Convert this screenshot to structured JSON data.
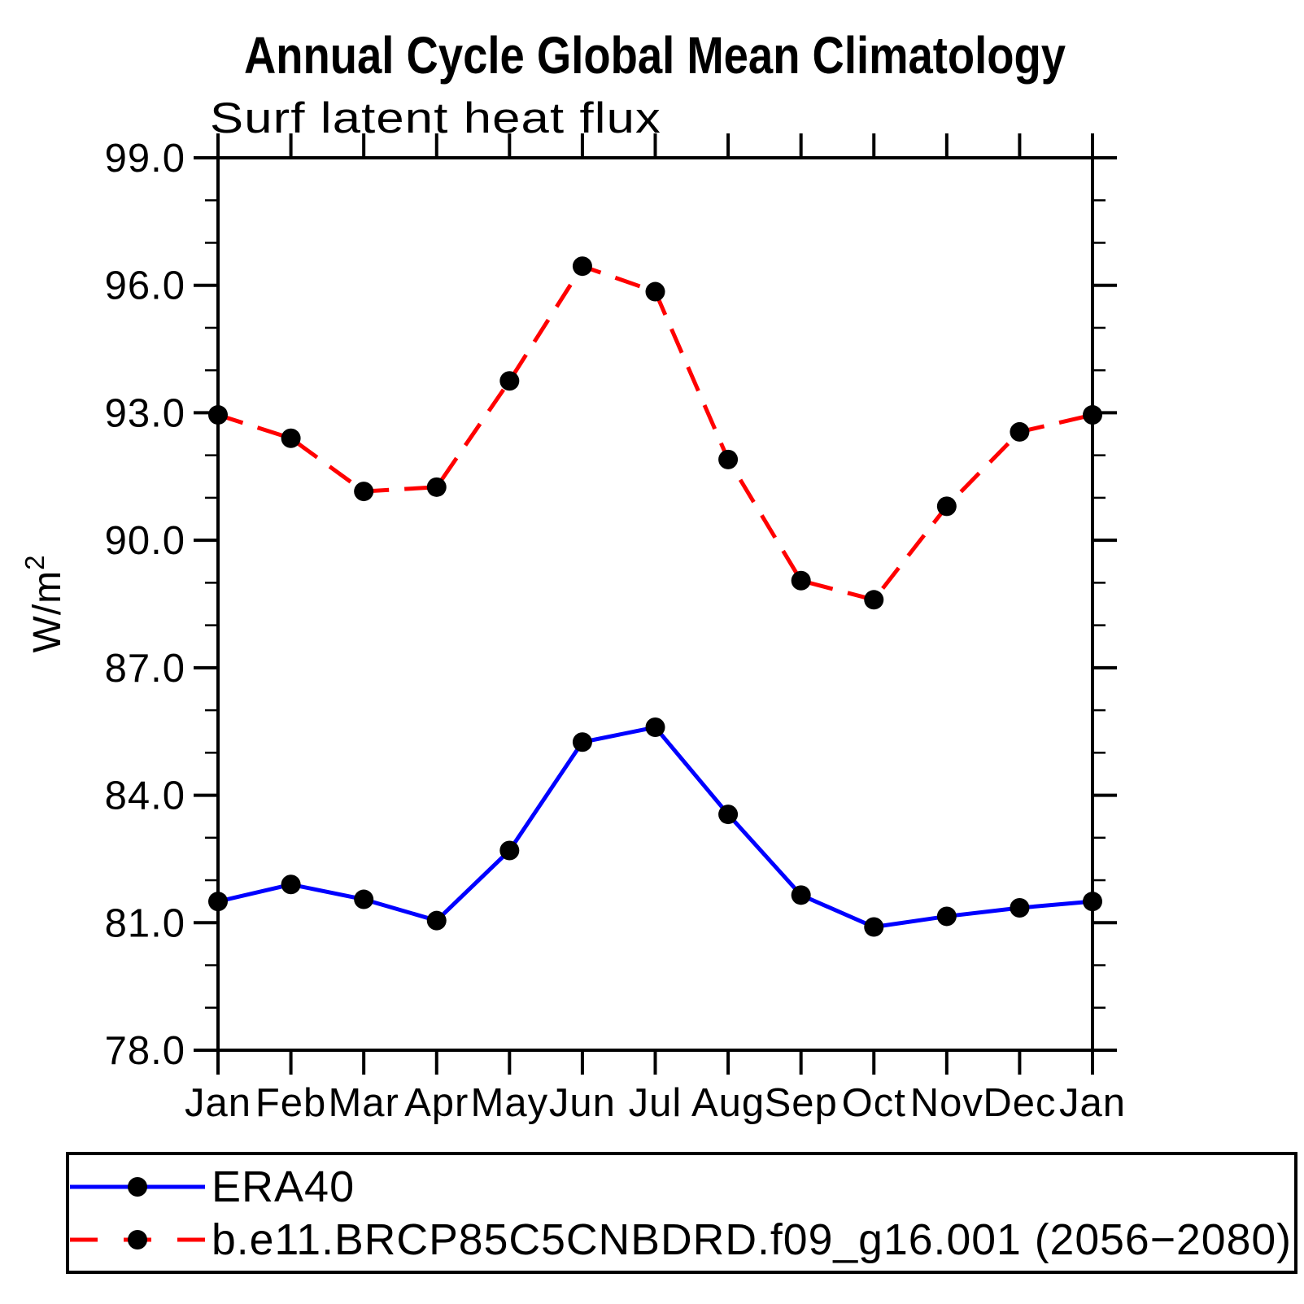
{
  "title": "Annual Cycle Global Mean Climatology",
  "subtitle": "Surf latent heat flux",
  "y_axis": {
    "label_prefix": "W/m",
    "label_sup": "2"
  },
  "colors": {
    "era40_line": "#0000ff",
    "model_line": "#ff0000",
    "marker": "#000000",
    "axis": "#000000",
    "background": "#ffffff"
  },
  "chart_data": {
    "type": "line",
    "categories": [
      "Jan",
      "Feb",
      "Mar",
      "Apr",
      "May",
      "Jun",
      "Jul",
      "Aug",
      "Sep",
      "Oct",
      "Nov",
      "Dec",
      "Jan"
    ],
    "title": "Annual Cycle Global Mean Climatology",
    "subtitle": "Surf latent heat flux",
    "xlabel": "",
    "ylabel": "W/m2",
    "ylim": [
      78.0,
      99.0
    ],
    "ytick_major_step": 3,
    "ytick_minor_step": 1,
    "ytick_labels": [
      "78.0",
      "81.0",
      "84.0",
      "87.0",
      "90.0",
      "93.0",
      "96.0",
      "99.0"
    ],
    "grid": false,
    "legend_position": "bottom-left-box",
    "series": [
      {
        "name": "ERA40",
        "color": "#0000ff",
        "line_style": "solid",
        "marker": "circle",
        "marker_color": "#000000",
        "values": [
          81.5,
          81.9,
          81.55,
          81.05,
          82.7,
          85.25,
          85.6,
          83.55,
          81.65,
          80.9,
          81.15,
          81.35,
          81.5
        ]
      },
      {
        "name": "b.e11.BRCP85C5CNBDRD.f09_g16.001 (2056−2080)",
        "color": "#ff0000",
        "line_style": "dashed",
        "marker": "circle",
        "marker_color": "#000000",
        "values": [
          92.95,
          92.4,
          91.15,
          91.25,
          93.75,
          96.45,
          95.85,
          91.9,
          89.05,
          88.6,
          90.8,
          92.55,
          92.95
        ]
      }
    ]
  }
}
